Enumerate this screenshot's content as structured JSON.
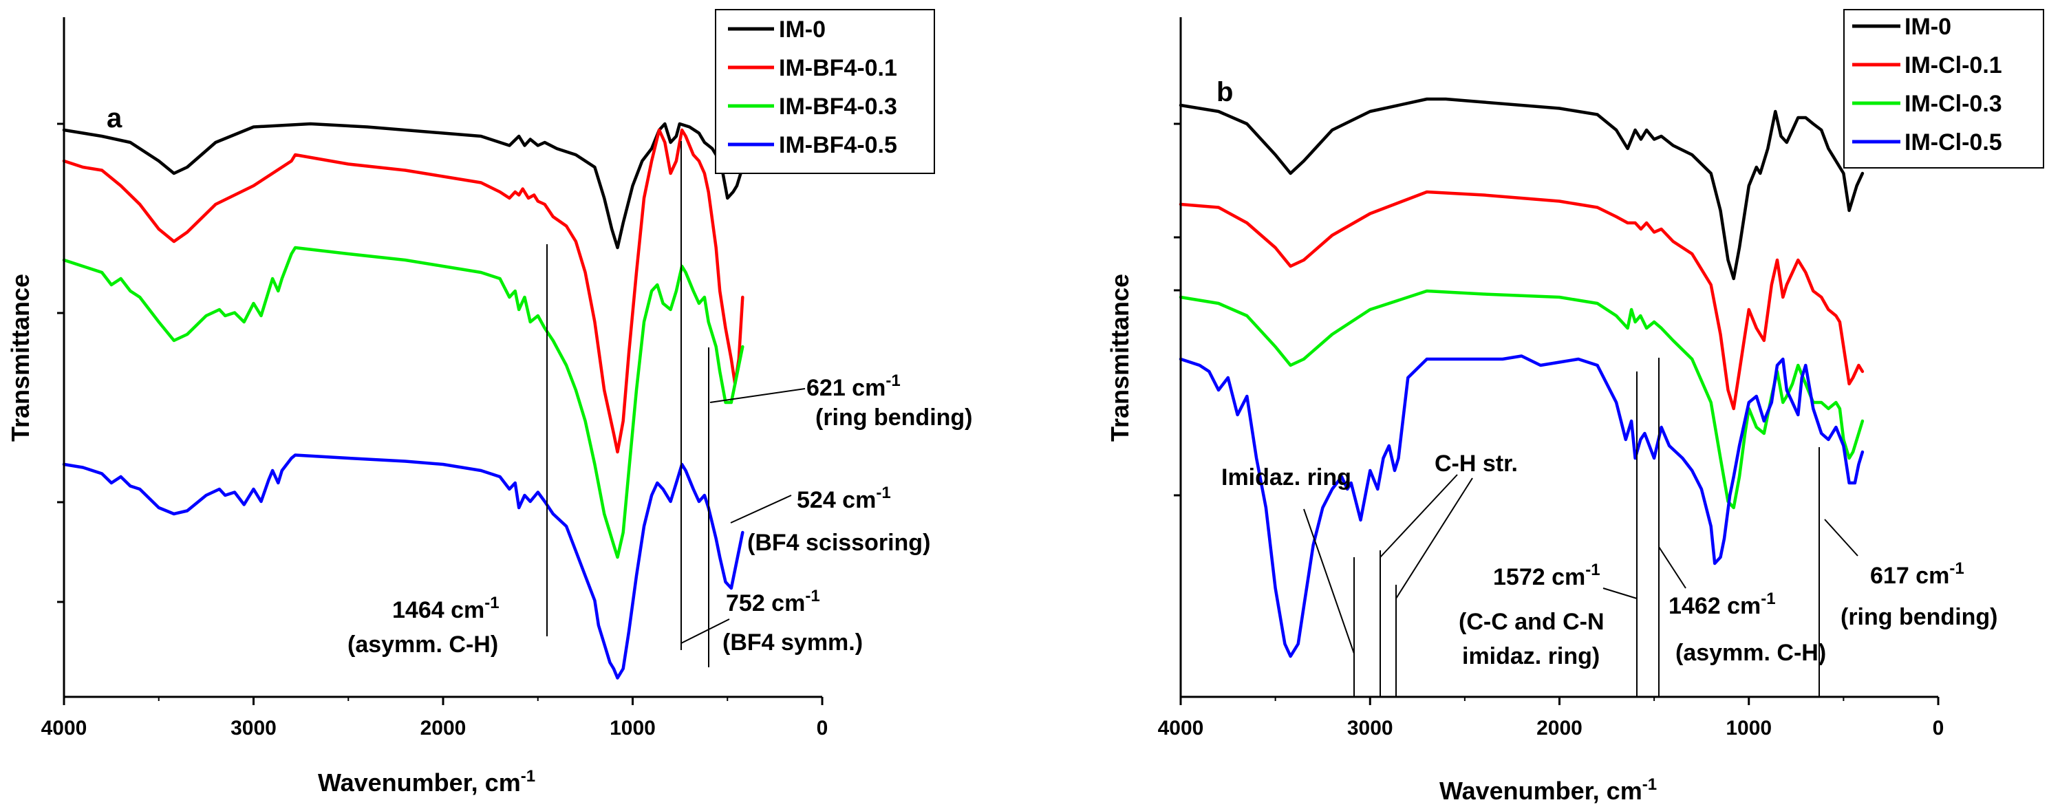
{
  "chart_data": [
    {
      "panel": "a",
      "type": "line",
      "xlabel": "Wavenumber, cm",
      "xlabel_sup": "-1",
      "ylabel": "Transmittance",
      "xlim": [
        4000,
        0
      ],
      "ylim": [
        0,
        100
      ],
      "x_ticks": [
        4000,
        3000,
        2000,
        1000,
        0
      ],
      "grid": false,
      "legend_position": "top-right",
      "series": [
        {
          "name": "IM-0",
          "color": "#000000",
          "x": [
            4000,
            3800,
            3650,
            3500,
            3420,
            3350,
            3200,
            3000,
            2700,
            2400,
            2000,
            1800,
            1650,
            1600,
            1570,
            1540,
            1500,
            1464,
            1400,
            1300,
            1200,
            1150,
            1110,
            1080,
            1050,
            1000,
            950,
            900,
            860,
            830,
            800,
            770,
            752,
            700,
            650,
            621,
            580,
            540,
            524,
            500,
            470,
            450,
            430,
            400
          ],
          "y": [
            89,
            88,
            87,
            84,
            82,
            83,
            87,
            89.5,
            90,
            89.5,
            88.5,
            88,
            86.5,
            88,
            86.5,
            87.5,
            86.5,
            87,
            86,
            85,
            83,
            78,
            73,
            70,
            74,
            80,
            84,
            86,
            89,
            90,
            87,
            88,
            90,
            89.5,
            88.5,
            87,
            86,
            84,
            82,
            78,
            79,
            80,
            82,
            84
          ]
        },
        {
          "name": "IM-BF4-0.1",
          "color": "#ff0000",
          "x": [
            4000,
            3900,
            3800,
            3700,
            3600,
            3500,
            3420,
            3350,
            3200,
            3000,
            2800,
            2780,
            2500,
            2200,
            2000,
            1800,
            1700,
            1650,
            1620,
            1600,
            1580,
            1550,
            1520,
            1500,
            1464,
            1420,
            1350,
            1300,
            1250,
            1200,
            1150,
            1100,
            1080,
            1050,
            1020,
            980,
            940,
            900,
            860,
            830,
            800,
            770,
            740,
            720,
            680,
            650,
            621,
            600,
            560,
            540,
            510,
            480,
            460,
            440,
            420
          ],
          "y": [
            84,
            83,
            82.5,
            80,
            77,
            73,
            71,
            72.5,
            77,
            80,
            84,
            85,
            83.5,
            82.5,
            81.5,
            80.5,
            79,
            78,
            79,
            78.5,
            79.5,
            78,
            78.5,
            77.5,
            77,
            75,
            73.5,
            71,
            66,
            58,
            47,
            40,
            37,
            42,
            53,
            66,
            78,
            84,
            89,
            87,
            82,
            84,
            89,
            88,
            85,
            84,
            82,
            79,
            70,
            63,
            57,
            52,
            48,
            52,
            62
          ]
        },
        {
          "name": "IM-BF4-0.3",
          "color": "#00ee00",
          "x": [
            4000,
            3900,
            3800,
            3750,
            3700,
            3650,
            3600,
            3500,
            3420,
            3350,
            3250,
            3180,
            3150,
            3100,
            3050,
            3000,
            2960,
            2920,
            2900,
            2870,
            2850,
            2800,
            2780,
            2500,
            2200,
            2000,
            1800,
            1700,
            1650,
            1620,
            1600,
            1570,
            1540,
            1500,
            1464,
            1420,
            1350,
            1300,
            1250,
            1200,
            1150,
            1100,
            1080,
            1050,
            1020,
            980,
            940,
            900,
            870,
            840,
            800,
            770,
            740,
            720,
            680,
            650,
            621,
            600,
            560,
            540,
            510,
            480,
            460,
            440,
            420
          ],
          "y": [
            68,
            67,
            66,
            64,
            65,
            63,
            62,
            58,
            55,
            56,
            59,
            60,
            59,
            59.5,
            58,
            61,
            59,
            63,
            65,
            63,
            65,
            69,
            70,
            69,
            68,
            67,
            66,
            65,
            62,
            63,
            60,
            62,
            58,
            59,
            57,
            55,
            51,
            47,
            42,
            35,
            27,
            22,
            20,
            24,
            34,
            47,
            58,
            63,
            64,
            61,
            60,
            63,
            67,
            66,
            63,
            61,
            62,
            58,
            54,
            50,
            45,
            45,
            48,
            51,
            54
          ]
        },
        {
          "name": "IM-BF4-0.5",
          "color": "#0000ff",
          "x": [
            4000,
            3900,
            3800,
            3750,
            3700,
            3650,
            3600,
            3500,
            3420,
            3350,
            3250,
            3180,
            3150,
            3100,
            3050,
            3000,
            2960,
            2920,
            2900,
            2870,
            2850,
            2800,
            2780,
            2500,
            2200,
            2000,
            1800,
            1700,
            1650,
            1620,
            1600,
            1570,
            1540,
            1500,
            1464,
            1420,
            1350,
            1300,
            1250,
            1200,
            1180,
            1150,
            1120,
            1100,
            1080,
            1050,
            1020,
            980,
            940,
            900,
            870,
            840,
            800,
            770,
            740,
            720,
            680,
            650,
            621,
            600,
            560,
            540,
            510,
            480,
            460,
            440,
            420
          ],
          "y": [
            35,
            34.5,
            33.5,
            32,
            33,
            31.5,
            31,
            28,
            27,
            27.5,
            30,
            31,
            30,
            30.5,
            28.5,
            31,
            29,
            32.5,
            34,
            32,
            34,
            36,
            36.5,
            36,
            35.5,
            35,
            34,
            33,
            31,
            32,
            28,
            30,
            29,
            30.5,
            29,
            27,
            25,
            21,
            17,
            13,
            9,
            6,
            3,
            2,
            0.5,
            2,
            8,
            17,
            25,
            30,
            32,
            31,
            29,
            32,
            35,
            34,
            31,
            29,
            30,
            28,
            23,
            20,
            16,
            15,
            18,
            21,
            24
          ]
        }
      ],
      "annotations": [
        {
          "label": "621 cm",
          "sup": "-1",
          "line2": "(ring bending)"
        },
        {
          "label": "524 cm",
          "sup": "-1",
          "line2": "(BF4 scissoring)"
        },
        {
          "label": "1464 cm",
          "sup": "-1",
          "line2": "(asymm. C-H)"
        },
        {
          "label": "752 cm",
          "sup": "-1",
          "line2": "(BF4 symm.)"
        }
      ]
    },
    {
      "panel": "b",
      "type": "line",
      "xlabel": "Wavenumber, cm",
      "xlabel_sup": "-1",
      "ylabel": "Transmittance",
      "xlim": [
        4000,
        0
      ],
      "ylim": [
        0,
        100
      ],
      "x_ticks": [
        4000,
        3000,
        2000,
        1000,
        0
      ],
      "grid": false,
      "legend_position": "top-right",
      "series": [
        {
          "name": "IM-0",
          "color": "#000000",
          "x": [
            4000,
            3800,
            3650,
            3500,
            3420,
            3350,
            3200,
            3000,
            2700,
            2600,
            2400,
            2000,
            1800,
            1700,
            1640,
            1600,
            1570,
            1540,
            1500,
            1462,
            1400,
            1300,
            1200,
            1150,
            1110,
            1080,
            1050,
            1000,
            960,
            940,
            900,
            860,
            830,
            800,
            770,
            740,
            700,
            660,
            617,
            580,
            540,
            500,
            470,
            450,
            430,
            400
          ],
          "y": [
            93,
            92,
            90,
            85,
            82,
            84,
            89,
            92,
            94,
            94,
            93.5,
            92.5,
            91.5,
            89,
            86,
            89,
            87.5,
            89,
            87.5,
            88,
            86.5,
            85,
            82,
            76,
            68,
            65,
            70,
            80,
            83,
            82,
            86,
            92,
            88,
            87,
            89,
            91,
            91,
            90,
            89,
            86,
            84,
            82,
            76,
            78,
            80,
            82
          ]
        },
        {
          "name": "IM-Cl-0.1",
          "color": "#ff0000",
          "x": [
            4000,
            3800,
            3650,
            3500,
            3420,
            3350,
            3200,
            3000,
            2700,
            2400,
            2000,
            1800,
            1700,
            1640,
            1600,
            1570,
            1540,
            1500,
            1462,
            1400,
            1300,
            1200,
            1150,
            1110,
            1080,
            1050,
            1020,
            1000,
            960,
            920,
            880,
            850,
            820,
            800,
            770,
            740,
            700,
            660,
            617,
            580,
            540,
            520,
            500,
            470,
            450,
            420,
            400
          ],
          "y": [
            77,
            76.5,
            74,
            70,
            67,
            68,
            72,
            75.5,
            79,
            78.5,
            77.5,
            76.5,
            75,
            74,
            74,
            73,
            74,
            72.5,
            73,
            71,
            69,
            64,
            56,
            47,
            44,
            50,
            56,
            60,
            57,
            55,
            64,
            68,
            62,
            64,
            66,
            68,
            66,
            63,
            62,
            60,
            59,
            58,
            54,
            48,
            49,
            51,
            50
          ]
        },
        {
          "name": "IM-Cl-0.3",
          "color": "#00ee00",
          "x": [
            4000,
            3800,
            3650,
            3500,
            3420,
            3350,
            3200,
            3000,
            2700,
            2400,
            2000,
            1800,
            1700,
            1640,
            1620,
            1600,
            1572,
            1540,
            1500,
            1462,
            1400,
            1300,
            1200,
            1150,
            1110,
            1080,
            1050,
            1020,
            1000,
            960,
            920,
            880,
            850,
            820,
            800,
            770,
            740,
            700,
            660,
            617,
            580,
            540,
            520,
            500,
            470,
            450,
            420,
            400
          ],
          "y": [
            62,
            61,
            59,
            54,
            51,
            52,
            56,
            60,
            63,
            62.5,
            62,
            61,
            59,
            57,
            60,
            58,
            59,
            57,
            58,
            57,
            55,
            52,
            45,
            36,
            29,
            28,
            33,
            40,
            44,
            41,
            40,
            46,
            50,
            45,
            46,
            48,
            51,
            48,
            45,
            45,
            44,
            45,
            44,
            39,
            36,
            37,
            40,
            42
          ]
        },
        {
          "name": "IM-Cl-0.5",
          "color": "#0000ff",
          "x": [
            4000,
            3900,
            3850,
            3800,
            3750,
            3700,
            3650,
            3600,
            3550,
            3500,
            3450,
            3420,
            3380,
            3350,
            3300,
            3250,
            3200,
            3150,
            3120,
            3100,
            3050,
            3000,
            2960,
            2930,
            2900,
            2870,
            2850,
            2800,
            2700,
            2500,
            2300,
            2200,
            2100,
            2000,
            1900,
            1800,
            1700,
            1650,
            1620,
            1600,
            1572,
            1550,
            1500,
            1462,
            1420,
            1350,
            1300,
            1250,
            1200,
            1180,
            1150,
            1130,
            1100,
            1080,
            1050,
            1000,
            960,
            920,
            880,
            850,
            820,
            800,
            770,
            740,
            720,
            700,
            660,
            617,
            580,
            540,
            500,
            470,
            440,
            420,
            400
          ],
          "y": [
            52,
            51,
            50,
            47,
            49,
            43,
            46,
            36,
            28,
            15,
            6,
            4,
            6,
            12,
            22,
            28,
            31,
            33,
            31,
            32,
            26,
            34,
            31,
            36,
            38,
            34,
            36,
            49,
            52,
            52,
            52,
            52.5,
            51,
            51.5,
            52,
            51,
            45,
            39,
            42,
            36,
            39,
            40,
            36,
            41,
            38,
            36,
            34,
            31,
            25,
            19,
            20,
            23,
            30,
            33,
            38,
            45,
            46,
            42,
            45,
            51,
            52,
            47,
            45,
            43,
            49,
            51,
            44,
            40,
            39,
            41,
            38,
            32,
            32,
            35,
            37
          ]
        }
      ],
      "annotations": [
        {
          "label": "Imidaz. ring"
        },
        {
          "label": "C-H str."
        },
        {
          "label": "1572 cm",
          "sup": "-1",
          "line2": "(C-C and C-N",
          "line3": "imidaz. ring)"
        },
        {
          "label": "1462 cm",
          "sup": "-1",
          "line2": "(asymm. C-H)"
        },
        {
          "label": "617 cm",
          "sup": "-1",
          "line2": "(ring bending)"
        }
      ]
    }
  ]
}
